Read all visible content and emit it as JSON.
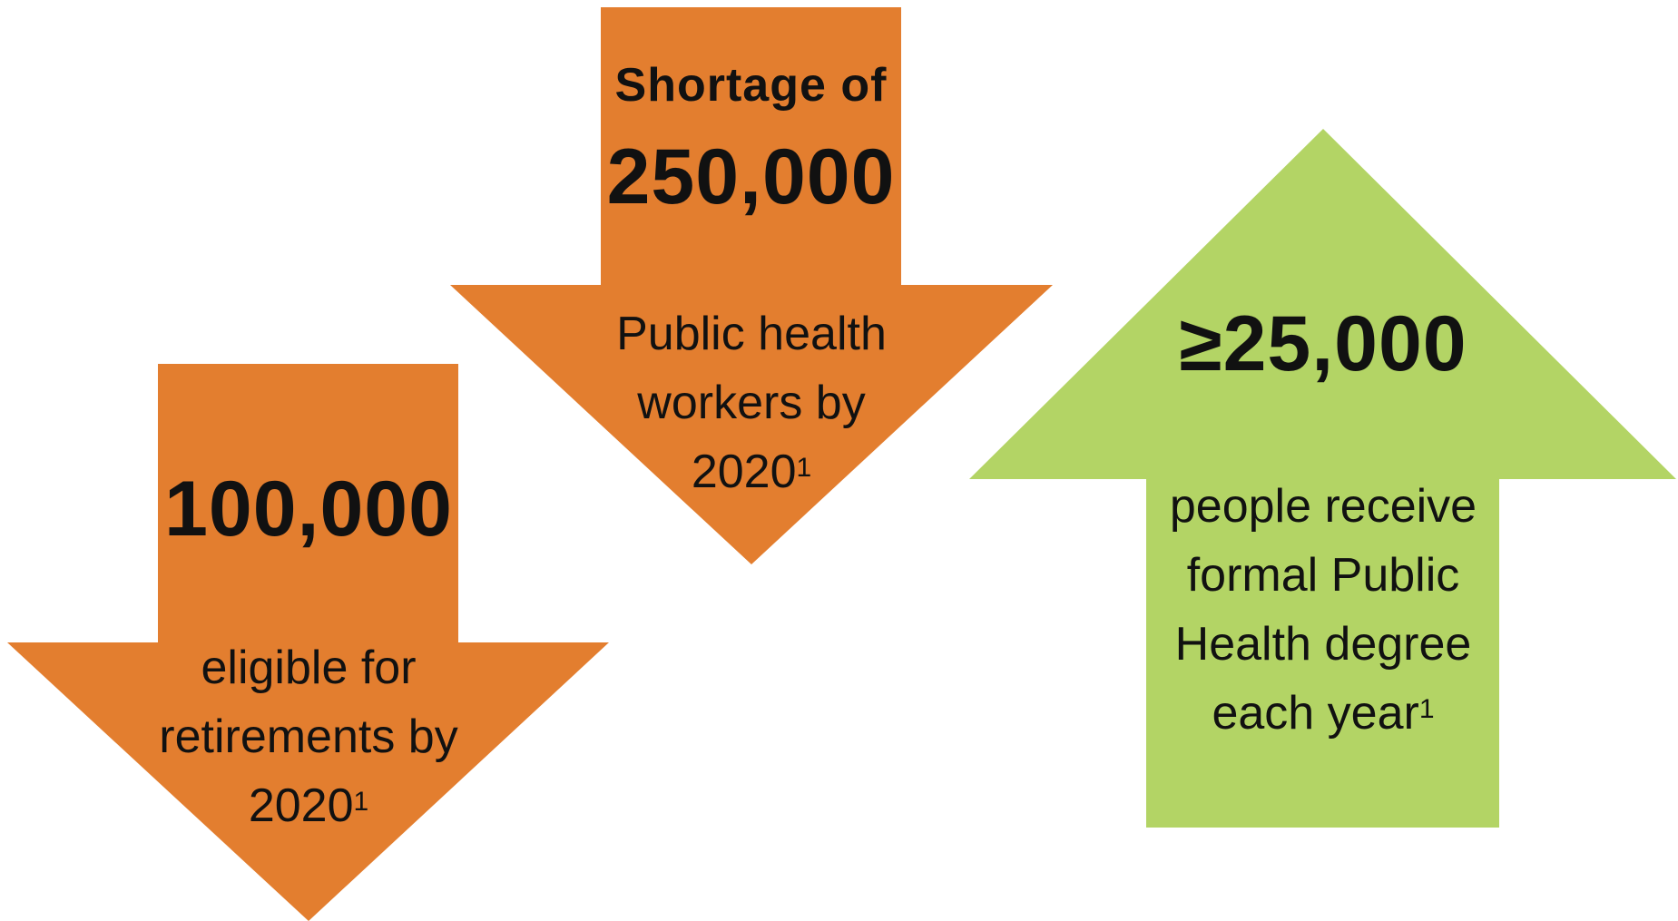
{
  "colors": {
    "down_arrow": "#E37E2F",
    "up_arrow": "#B3D465",
    "text": "#111111"
  },
  "arrow_left": {
    "direction": "down",
    "headline": "100,000",
    "line1": "eligible for",
    "line2": "retirements by",
    "line3": "2020",
    "footnote": "1"
  },
  "arrow_middle": {
    "direction": "down",
    "prefix": "Shortage of",
    "headline": "250,000",
    "line1": "Public health",
    "line2": "workers by",
    "line3": "2020",
    "footnote": "1"
  },
  "arrow_right": {
    "direction": "up",
    "headline": "≥25,000",
    "line1": "people receive",
    "line2": "formal Public",
    "line3": "Health degree",
    "line4": "each year",
    "footnote": "1"
  }
}
